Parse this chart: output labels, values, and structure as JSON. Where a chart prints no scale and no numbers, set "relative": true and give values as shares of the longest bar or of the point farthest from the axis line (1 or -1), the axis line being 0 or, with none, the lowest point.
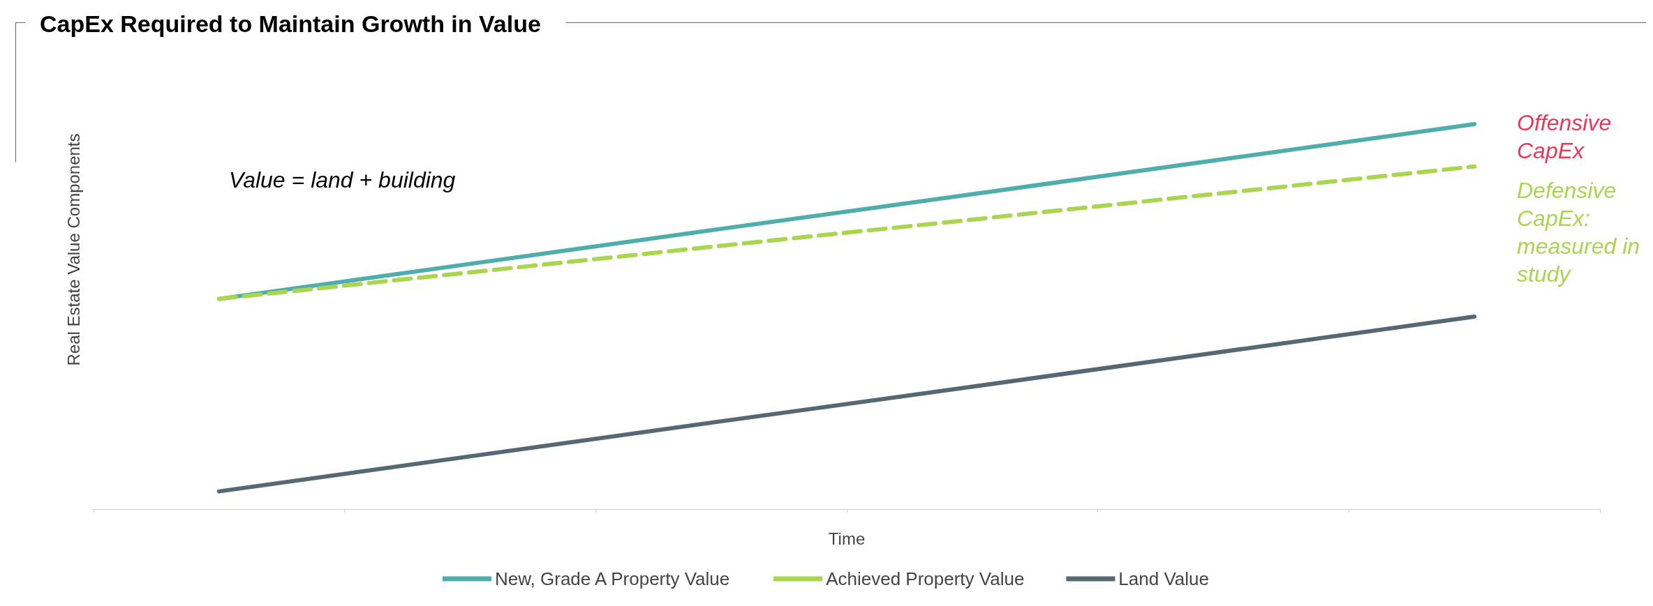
{
  "chart_data": {
    "type": "line",
    "title": "CapEx Required to Maintain Growth in Value",
    "xlabel": "Time",
    "ylabel": "Real Estate Value Components",
    "relative": true,
    "grid": false,
    "legend": "bottom",
    "categories": [
      null,
      null,
      null,
      null,
      null,
      null
    ],
    "series": [
      {
        "name": "New, Grade A Property Value",
        "color": "#4fadac",
        "line_style": "solid",
        "values": [
          0.546,
          0.637,
          0.728,
          0.818,
          0.909,
          1.0
        ]
      },
      {
        "name": "Achieved Property Value",
        "color": "#a9d54f",
        "line_style": "dashed",
        "values": [
          0.546,
          0.615,
          0.684,
          0.752,
          0.821,
          0.89
        ]
      },
      {
        "name": "Land Value",
        "color": "#566873",
        "line_style": "solid",
        "values": [
          0.046,
          0.137,
          0.228,
          0.318,
          0.409,
          0.5
        ]
      }
    ],
    "annotations": [
      "Value = land + building",
      "Offensive CapEx",
      "Defensive CapEx: measured in study"
    ]
  }
}
